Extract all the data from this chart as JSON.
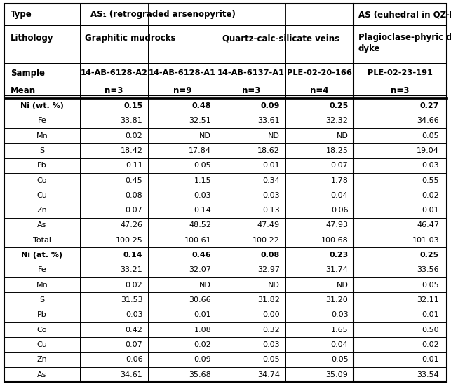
{
  "header_rows": {
    "type_labels": [
      "Type",
      "AS₁ (retrograded arsenopyrite)",
      "AS (euhedral in QZ-PG vein)"
    ],
    "lithology_labels": [
      "Lithology",
      "Graphitic mudrocks",
      "Quartz-calc-silicate veins",
      "Plagioclase-phyric dioritic\ndyke"
    ],
    "sample_labels": [
      "Sample",
      "14-AB-6128-A2",
      "14-AB-6128-A1",
      "14-AB-6137-A1",
      "PLE-02-20-166",
      "PLE-02-23-191"
    ],
    "mean_labels": [
      "Mean",
      "n=3",
      "n=9",
      "n=3",
      "n=4",
      "n=3"
    ]
  },
  "data_rows": [
    [
      "Ni (wt. %)",
      "0.15",
      "0.48",
      "0.09",
      "0.25",
      "0.27"
    ],
    [
      "Fe",
      "33.81",
      "32.51",
      "33.61",
      "32.32",
      "34.66"
    ],
    [
      "Mn",
      "0.02",
      "ND",
      "ND",
      "ND",
      "0.05"
    ],
    [
      "S",
      "18.42",
      "17.84",
      "18.62",
      "18.25",
      "19.04"
    ],
    [
      "Pb",
      "0.11",
      "0.05",
      "0.01",
      "0.07",
      "0.03"
    ],
    [
      "Co",
      "0.45",
      "1.15",
      "0.34",
      "1.78",
      "0.55"
    ],
    [
      "Cu",
      "0.08",
      "0.03",
      "0.03",
      "0.04",
      "0.02"
    ],
    [
      "Zn",
      "0.07",
      "0.14",
      "0.13",
      "0.06",
      "0.01"
    ],
    [
      "As",
      "47.26",
      "48.52",
      "47.49",
      "47.93",
      "46.47"
    ],
    [
      "Total",
      "100.25",
      "100.61",
      "100.22",
      "100.68",
      "101.03"
    ],
    [
      "Ni (at. %)",
      "0.14",
      "0.46",
      "0.08",
      "0.23",
      "0.25"
    ],
    [
      "Fe",
      "33.21",
      "32.07",
      "32.97",
      "31.74",
      "33.56"
    ],
    [
      "Mn",
      "0.02",
      "ND",
      "ND",
      "ND",
      "0.05"
    ],
    [
      "S",
      "31.53",
      "30.66",
      "31.82",
      "31.20",
      "32.11"
    ],
    [
      "Pb",
      "0.03",
      "0.01",
      "0.00",
      "0.03",
      "0.01"
    ],
    [
      "Co",
      "0.42",
      "1.08",
      "0.32",
      "1.65",
      "0.50"
    ],
    [
      "Cu",
      "0.07",
      "0.02",
      "0.03",
      "0.04",
      "0.02"
    ],
    [
      "Zn",
      "0.06",
      "0.09",
      "0.05",
      "0.05",
      "0.01"
    ],
    [
      "As",
      "34.61",
      "35.68",
      "34.74",
      "35.09",
      "33.54"
    ]
  ],
  "bold_data_rows": [
    0,
    10
  ],
  "bg_color": "#ffffff",
  "border_color": "#000000",
  "font_size": 8.0,
  "header_font_size": 8.5
}
